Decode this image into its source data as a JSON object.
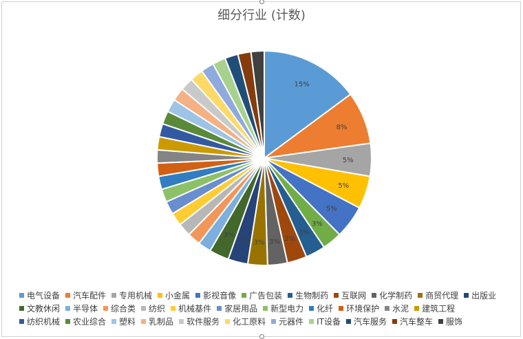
{
  "chart_data": {
    "type": "pie",
    "title": "细分行业 (计数)",
    "label_unit": "%",
    "legend_position": "bottom",
    "categories": [
      "电气设备",
      "汽车配件",
      "专用机械",
      "小金属",
      "影视音像",
      "广告包装",
      "生物制药",
      "互联网",
      "化学制药",
      "商贸代理",
      "出版业",
      "文教休闲",
      "半导体",
      "综合类",
      "纺织",
      "机械基件",
      "家居用品",
      "新型电力",
      "化纤",
      "环境保护",
      "水泥",
      "建筑工程",
      "纺织机械",
      "农业综合",
      "塑料",
      "乳制品",
      "软件服务",
      "化工原料",
      "元器件",
      "IT设备",
      "汽车服务",
      "汽车整车",
      "服饰"
    ],
    "values": [
      15,
      8,
      5,
      5,
      5,
      3,
      3,
      3,
      3,
      3,
      3,
      3,
      2,
      2,
      2,
      2,
      2,
      2,
      2,
      2,
      2,
      2,
      2,
      2,
      2,
      2,
      2,
      2,
      2,
      2,
      2,
      2,
      2
    ],
    "data_labels": [
      "15%",
      "8%",
      "5%",
      "5%",
      "5%",
      "3%",
      "3%",
      "3%",
      "3%",
      "3%",
      "3%",
      "3%",
      "",
      "",
      "",
      "",
      "",
      "",
      "",
      "",
      "",
      "",
      "",
      "",
      "",
      "",
      "",
      "",
      "",
      "",
      "",
      "",
      ""
    ],
    "colors": [
      "#5B9BD5",
      "#ED7D31",
      "#A5A5A5",
      "#FFC000",
      "#4472C4",
      "#70AD47",
      "#255E91",
      "#9E480E",
      "#636363",
      "#997300",
      "#264478",
      "#43682B",
      "#7CAFDD",
      "#F1975A",
      "#B7B7B7",
      "#FFCD33",
      "#698ED0",
      "#8CC168",
      "#327DC2",
      "#D26012",
      "#848484",
      "#CC9A00",
      "#335AA1",
      "#5A8A39",
      "#9DC3E6",
      "#F4B183",
      "#C9C9C9",
      "#FFD966",
      "#8FAADC",
      "#A9D18E",
      "#1F4E79",
      "#843C0C",
      "#404040"
    ]
  }
}
